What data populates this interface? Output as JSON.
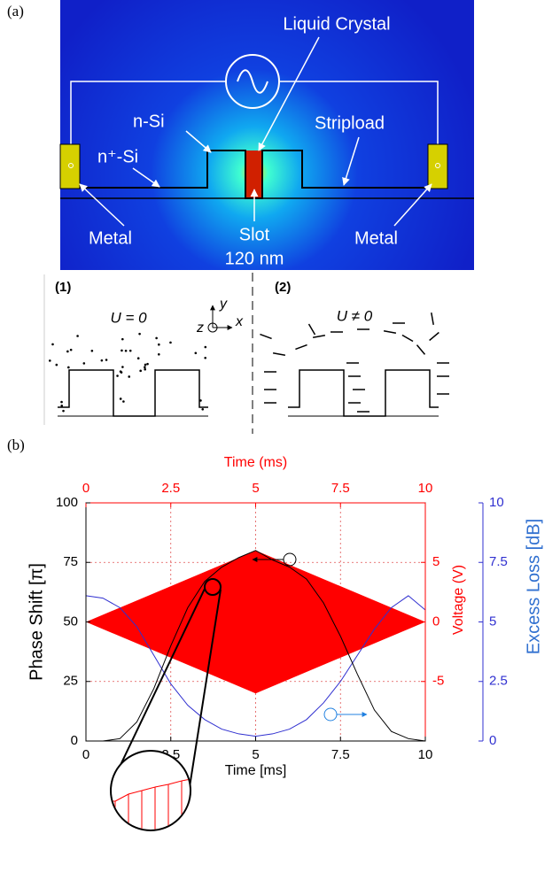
{
  "panel_a": {
    "label": "(a)",
    "liquid_crystal": "Liquid Crystal",
    "n_si": "n-Si",
    "np_si": "n⁺-Si",
    "stripload": "Stripload",
    "metal_left": "Metal",
    "slot": "Slot",
    "slot_width": "120 nm",
    "metal_right": "Metal",
    "state1": "(1)",
    "state1_voltage": "U = 0",
    "state2": "(2)",
    "state2_voltage": "U ≠ 0",
    "axis_x": "x",
    "axis_y": "y",
    "axis_z": "z"
  },
  "panel_b": {
    "label": "(b)"
  },
  "chart_data": {
    "type": "line",
    "x_label": "Time [ms]",
    "x2_label": "Time (ms)",
    "y_label": "Phase Shift [π]",
    "y2_label": "Voltage (V)",
    "y3_label": "Excess Loss [dB]",
    "xlim": [
      0,
      10
    ],
    "xticks": [
      0,
      2.5,
      5,
      7.5,
      10
    ],
    "x2lim": [
      0,
      10
    ],
    "x2ticks": [
      0,
      2.5,
      5,
      7.5,
      10
    ],
    "ylim": [
      0,
      100
    ],
    "yticks": [
      0,
      25,
      50,
      75,
      100
    ],
    "y2lim": [
      -10,
      10
    ],
    "y2ticks": [
      -5,
      0,
      5
    ],
    "y3lim": [
      0,
      10
    ],
    "y3ticks": [
      0,
      2.5,
      5,
      7.5,
      10
    ],
    "grid": true,
    "grid_color": "#e05050",
    "series": [
      {
        "color": "#000000",
        "x": [
          0,
          0.5,
          1,
          1.5,
          2,
          2.5,
          3,
          3.5,
          4,
          4.5,
          5,
          5.5,
          6,
          6.5,
          7,
          7.5,
          8,
          8.5,
          9,
          9.5,
          10
        ],
        "values": [
          0,
          0,
          1,
          8,
          22,
          40,
          56,
          67,
          73,
          77,
          80,
          76,
          73,
          68,
          58,
          44,
          28,
          13,
          4,
          1,
          0
        ]
      },
      {
        "color": "#3030d0",
        "axis": "y3",
        "x": [
          0,
          0.5,
          1,
          1.5,
          2,
          2.5,
          3,
          3.5,
          4,
          4.5,
          5,
          5.5,
          6,
          6.5,
          7,
          7.5,
          8,
          8.5,
          9,
          9.5,
          10
        ],
        "values": [
          6.1,
          6,
          5.6,
          4.8,
          3.6,
          2.4,
          1.5,
          0.9,
          0.5,
          0.3,
          0.2,
          0.3,
          0.5,
          0.9,
          1.6,
          2.5,
          3.6,
          4.7,
          5.6,
          6.1,
          5.5
        ]
      },
      {
        "color": "#ff0000",
        "axis": "y2",
        "x": [
          0,
          5,
          10
        ],
        "values": [
          0,
          6,
          0
        ]
      }
    ]
  }
}
